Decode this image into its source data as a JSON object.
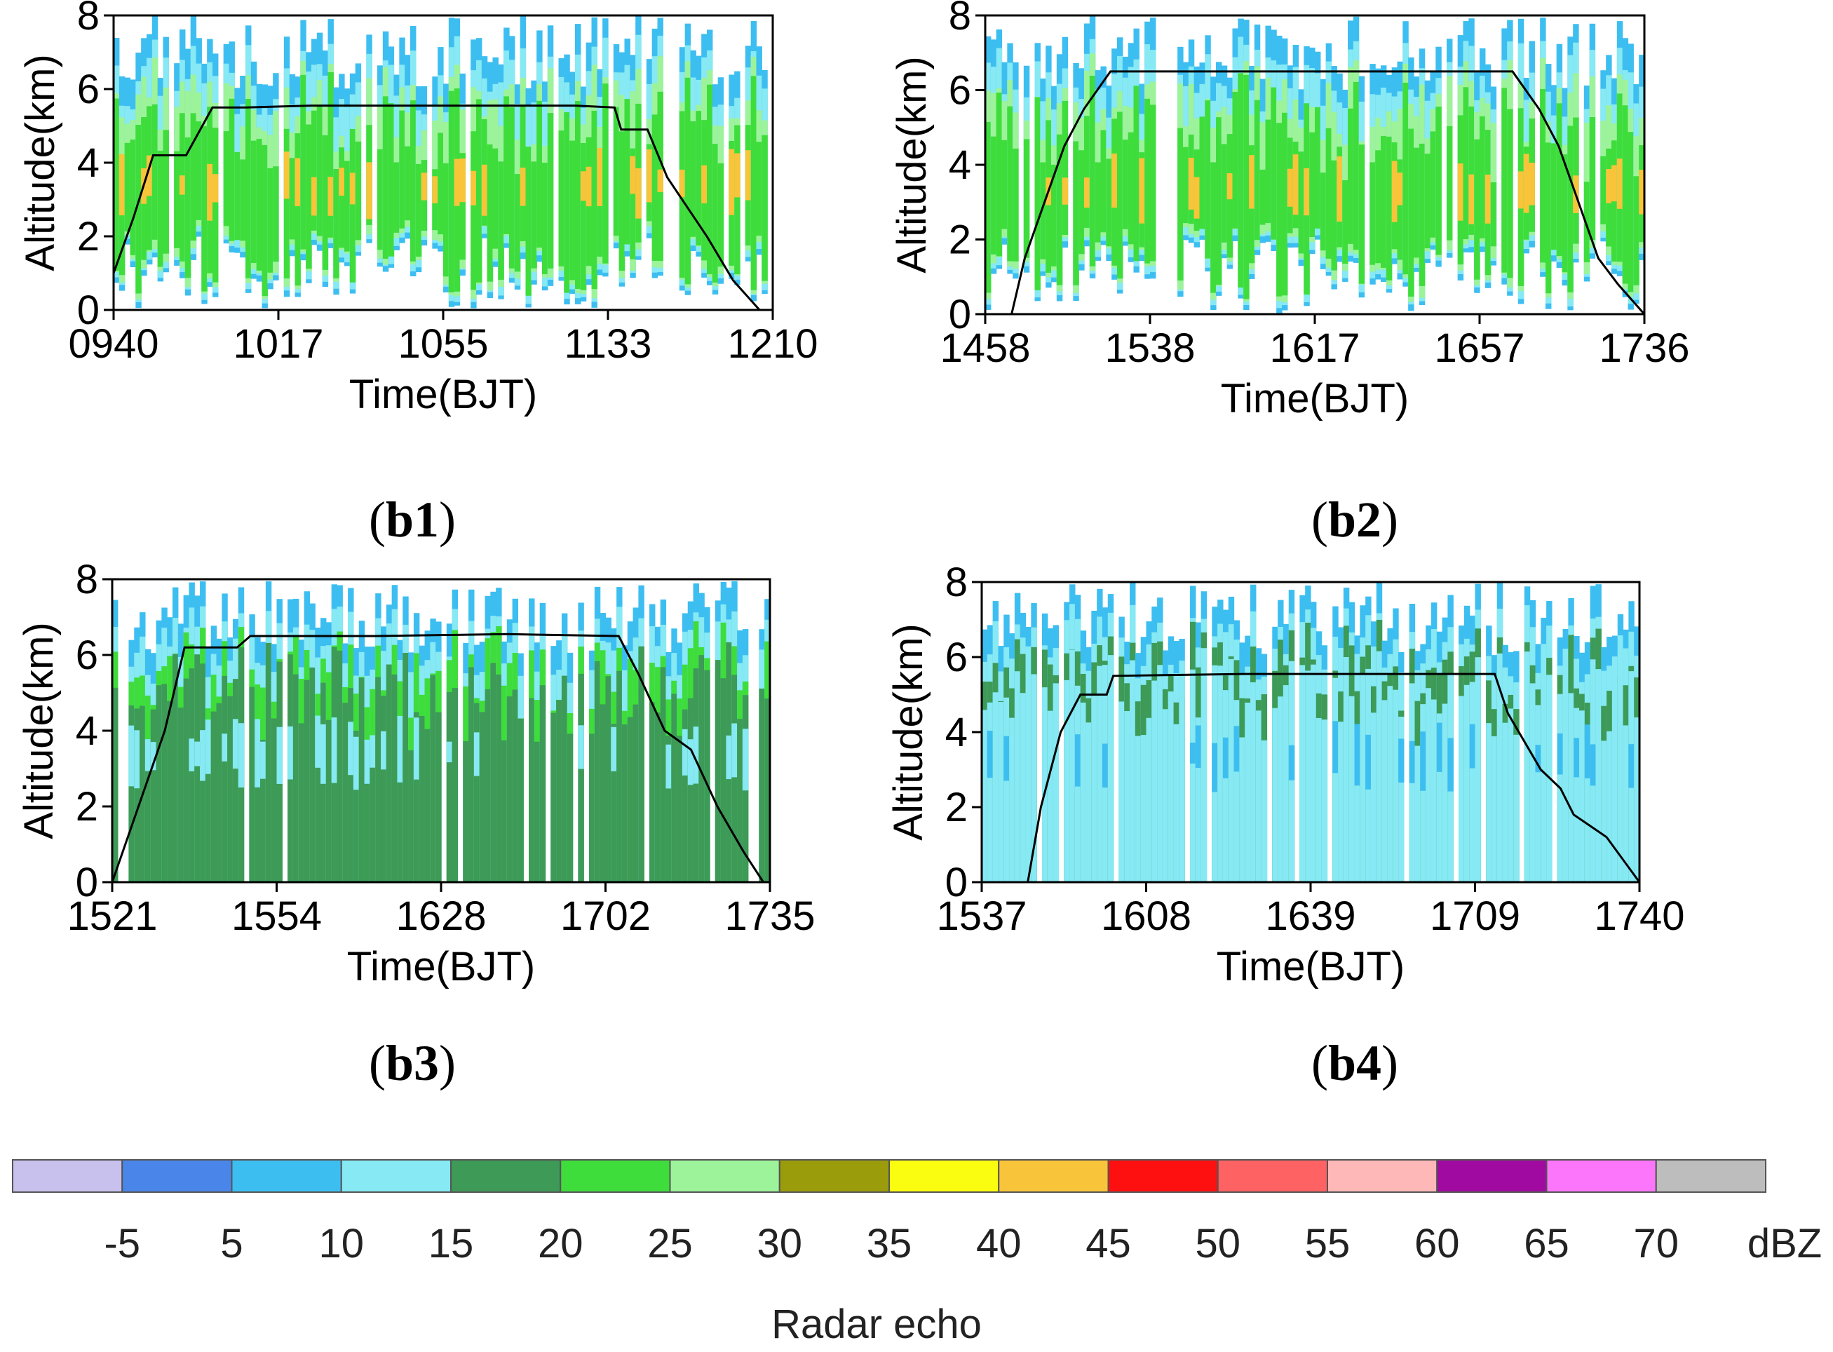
{
  "chart_data": [
    {
      "type": "heatmap",
      "panel_label": "b1",
      "title": "",
      "xlabel": "Time(BJT)",
      "ylabel": "Altitude(km)",
      "x_ticks": [
        "0940",
        "1017",
        "1055",
        "1133",
        "1210"
      ],
      "y_ticks": [
        "0",
        "2",
        "4",
        "6",
        "8"
      ],
      "ylim": [
        0,
        8
      ],
      "flight_altitude_km": {
        "x": [
          0,
          0.03,
          0.06,
          0.11,
          0.15,
          0.2,
          0.3,
          0.5,
          0.7,
          0.76,
          0.77,
          0.81,
          0.84,
          0.9,
          0.94,
          0.98,
          1.0
        ],
        "y": [
          1.0,
          2.5,
          4.2,
          4.2,
          5.5,
          5.5,
          5.55,
          5.55,
          5.55,
          5.5,
          4.9,
          4.9,
          3.6,
          2.0,
          0.8,
          0.0,
          0.0
        ]
      }
    },
    {
      "type": "heatmap",
      "panel_label": "b2",
      "title": "",
      "xlabel": "Time(BJT)",
      "ylabel": "Altitude(km)",
      "x_ticks": [
        "1458",
        "1538",
        "1617",
        "1657",
        "1736"
      ],
      "y_ticks": [
        "0",
        "2",
        "4",
        "6",
        "8"
      ],
      "ylim": [
        0,
        8
      ],
      "flight_altitude_km": {
        "x": [
          0,
          0.04,
          0.06,
          0.09,
          0.12,
          0.15,
          0.17,
          0.19,
          0.4,
          0.6,
          0.8,
          0.84,
          0.87,
          0.9,
          0.93,
          0.96,
          1.0
        ],
        "y": [
          0.0,
          0.0,
          1.5,
          3.0,
          4.5,
          5.5,
          6.0,
          6.5,
          6.5,
          6.5,
          6.5,
          5.5,
          4.5,
          3.0,
          1.5,
          0.8,
          0.0
        ]
      }
    },
    {
      "type": "heatmap",
      "panel_label": "b3",
      "title": "",
      "xlabel": "Time(BJT)",
      "ylabel": "Altitude(km)",
      "x_ticks": [
        "1521",
        "1554",
        "1628",
        "1702",
        "1735"
      ],
      "y_ticks": [
        "0",
        "2",
        "4",
        "6",
        "8"
      ],
      "ylim": [
        0,
        8
      ],
      "flight_altitude_km": {
        "x": [
          0,
          0.04,
          0.08,
          0.11,
          0.19,
          0.21,
          0.4,
          0.6,
          0.77,
          0.8,
          0.84,
          0.88,
          0.92,
          0.96,
          0.99
        ],
        "y": [
          0.0,
          2.0,
          4.0,
          6.2,
          6.2,
          6.5,
          6.5,
          6.55,
          6.5,
          5.5,
          4.0,
          3.5,
          2.0,
          0.8,
          0.0
        ]
      }
    },
    {
      "type": "heatmap",
      "panel_label": "b4",
      "title": "",
      "xlabel": "Time(BJT)",
      "ylabel": "Altitude(km)",
      "x_ticks": [
        "1537",
        "1608",
        "1639",
        "1709",
        "1740"
      ],
      "y_ticks": [
        "0",
        "2",
        "4",
        "6",
        "8"
      ],
      "ylim": [
        0,
        8
      ],
      "flight_altitude_km": {
        "x": [
          0,
          0.07,
          0.09,
          0.12,
          0.15,
          0.19,
          0.2,
          0.4,
          0.6,
          0.78,
          0.8,
          0.85,
          0.88,
          0.9,
          0.95,
          1.0
        ],
        "y": [
          0.0,
          0.0,
          2.0,
          4.0,
          5.0,
          5.0,
          5.5,
          5.55,
          5.55,
          5.55,
          4.5,
          3.0,
          2.5,
          1.8,
          1.2,
          0.0
        ]
      }
    }
  ],
  "colorbar": {
    "title": "Radar echo",
    "unit": "dBZ",
    "tick_labels": [
      "-5",
      "5",
      "10",
      "15",
      "20",
      "25",
      "30",
      "35",
      "40",
      "45",
      "50",
      "55",
      "60",
      "65",
      "70"
    ],
    "colors": [
      "#c8c1ee",
      "#4a86ea",
      "#3dbef1",
      "#86e9f3",
      "#3d9a57",
      "#3edd3c",
      "#9df39a",
      "#9b9c0b",
      "#fbfd10",
      "#f8c43a",
      "#ff1010",
      "#ff6262",
      "#ffb8b8",
      "#a00aa0",
      "#fb76fb",
      "#bdbdbd"
    ]
  }
}
